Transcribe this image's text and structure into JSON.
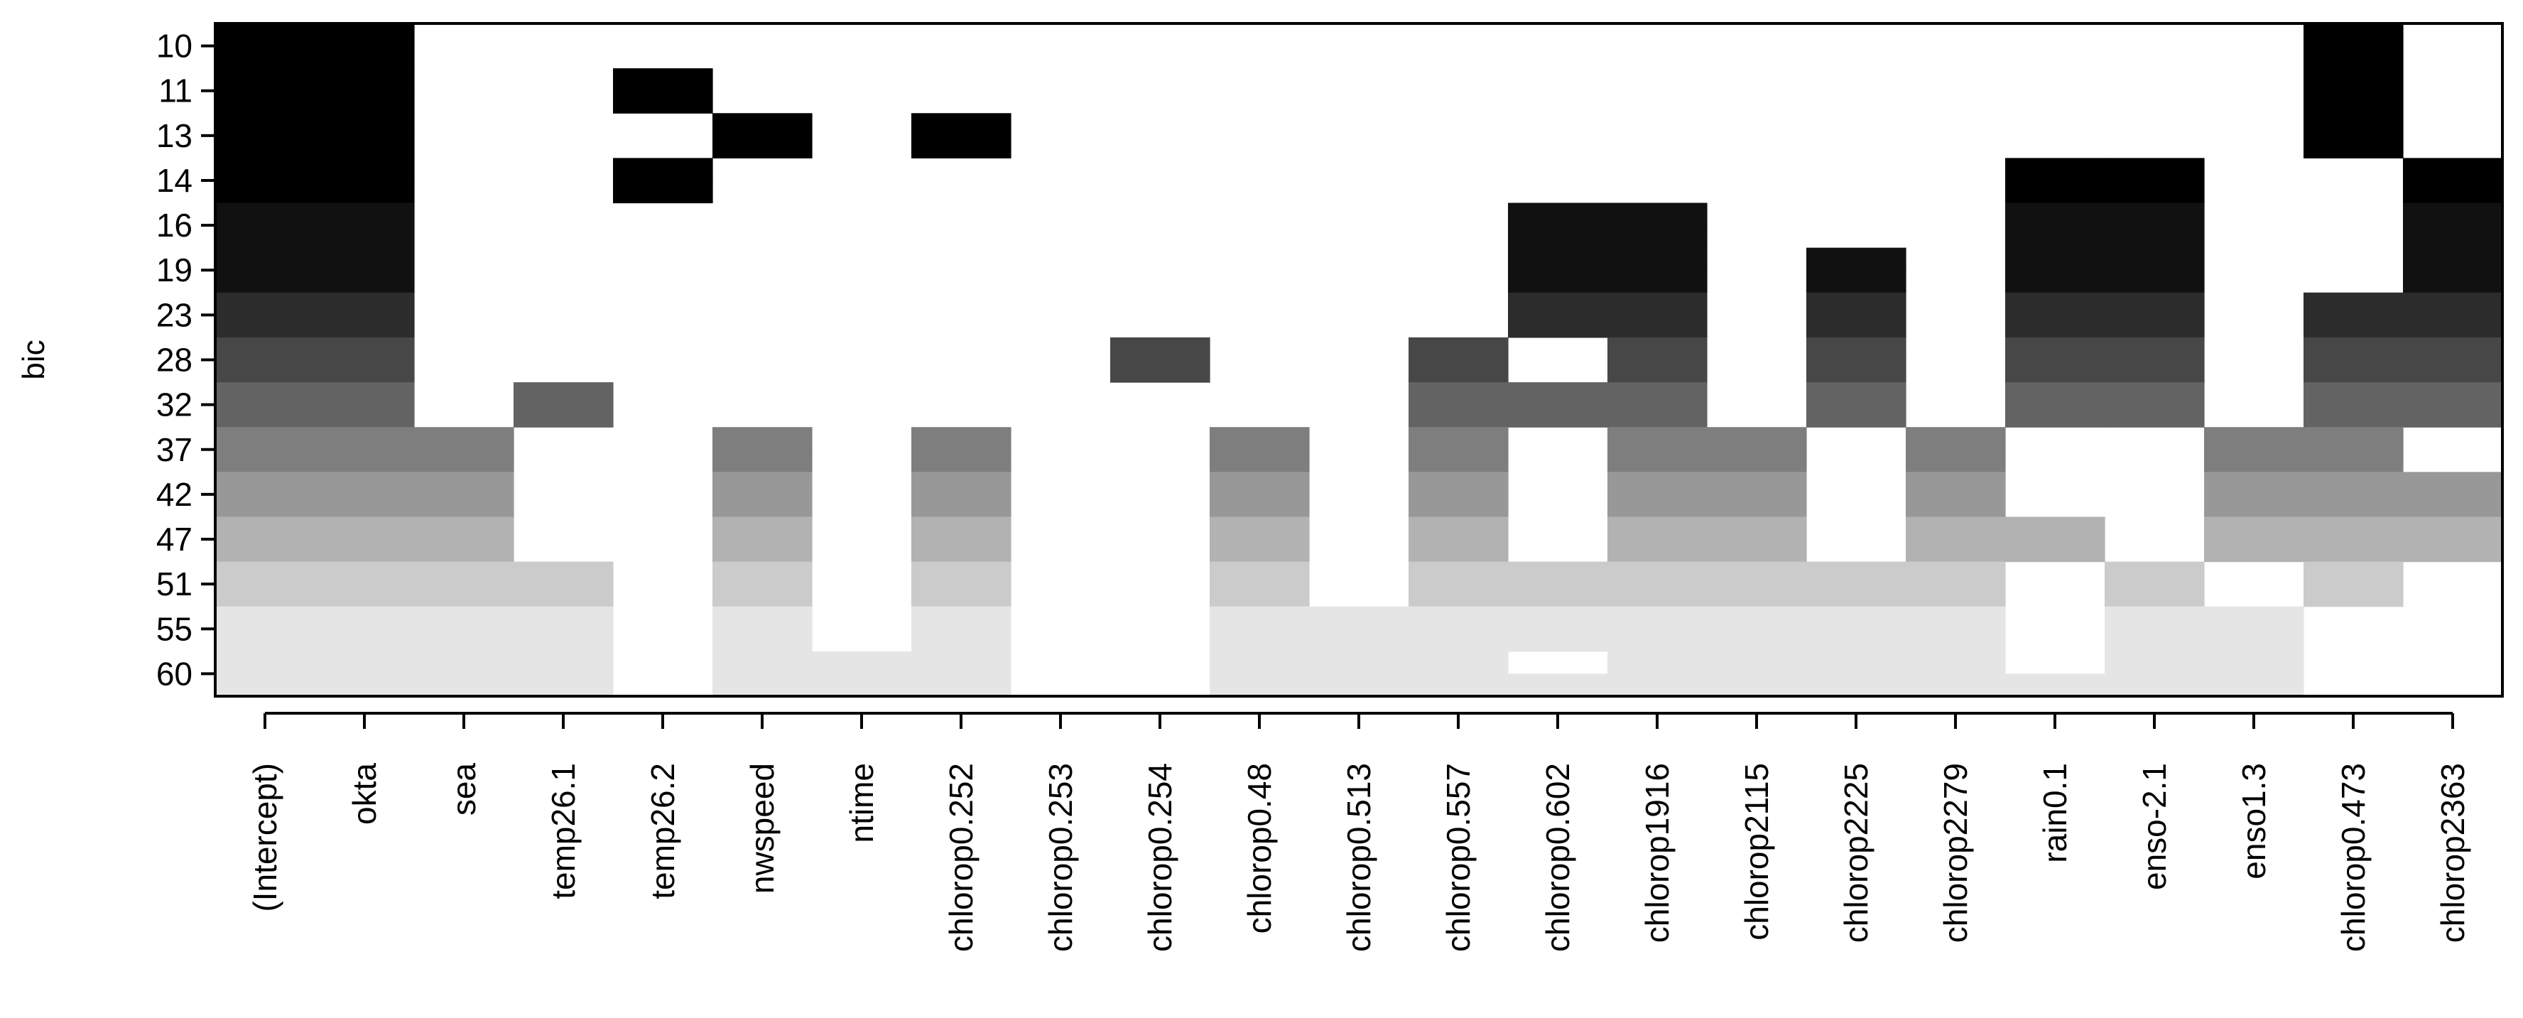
{
  "chart_data": {
    "type": "heatmap",
    "ylabel": "bic",
    "y_tick_labels": [
      "10",
      "11",
      "13",
      "14",
      "16",
      "19",
      "23",
      "28",
      "32",
      "37",
      "42",
      "47",
      "51",
      "55",
      "60"
    ],
    "x_tick_labels": [
      "(Intercept)",
      "okta",
      "sea",
      "temp26.1",
      "temp26.2",
      "nwspeed",
      "ntime",
      "chlorop0.252",
      "chlorop0.253",
      "chlorop0.254",
      "chlorop0.48",
      "chlorop0.513",
      "chlorop0.557",
      "chlorop0.602",
      "chlorop1916",
      "chlorop2115",
      "chlorop2225",
      "chlorop2279",
      "rain0.1",
      "enso-2.1",
      "enso1.3",
      "chlorop0.473",
      "chlorop2363"
    ],
    "row_colors": [
      "#000000",
      "#000000",
      "#000000",
      "#000000",
      "#111111",
      "#111111",
      "#2c2c2c",
      "#474747",
      "#636363",
      "#7e7e7e",
      "#989898",
      "#b2b2b2",
      "#cbcbcb",
      "#e5e5e5",
      "#e5e5e5"
    ],
    "subrow_fractions": [
      0.5,
      0.5,
      0.5,
      0.5,
      0.5,
      0.5,
      0.5,
      0.5,
      0.5,
      0.5,
      0.5,
      0.5,
      0.5,
      0.5,
      0.5
    ],
    "included": [
      [
        [
          1,
          1
        ],
        [
          1,
          1
        ],
        [
          0,
          0
        ],
        [
          0,
          0
        ],
        [
          0,
          0
        ],
        [
          0,
          0
        ],
        [
          0,
          0
        ],
        [
          0,
          0
        ],
        [
          0,
          0
        ],
        [
          0,
          0
        ],
        [
          0,
          0
        ],
        [
          0,
          0
        ],
        [
          0,
          0
        ],
        [
          0,
          0
        ],
        [
          0,
          0
        ],
        [
          0,
          0
        ],
        [
          0,
          0
        ],
        [
          0,
          0
        ],
        [
          0,
          0
        ],
        [
          0,
          0
        ],
        [
          0,
          0
        ],
        [
          1,
          1
        ],
        [
          0,
          0
        ]
      ],
      [
        [
          1,
          1
        ],
        [
          1,
          1
        ],
        [
          0,
          0
        ],
        [
          0,
          0
        ],
        [
          1,
          1
        ],
        [
          0,
          0
        ],
        [
          0,
          0
        ],
        [
          0,
          0
        ],
        [
          0,
          0
        ],
        [
          0,
          0
        ],
        [
          0,
          0
        ],
        [
          0,
          0
        ],
        [
          0,
          0
        ],
        [
          0,
          0
        ],
        [
          0,
          0
        ],
        [
          0,
          0
        ],
        [
          0,
          0
        ],
        [
          0,
          0
        ],
        [
          0,
          0
        ],
        [
          0,
          0
        ],
        [
          0,
          0
        ],
        [
          1,
          1
        ],
        [
          0,
          0
        ]
      ],
      [
        [
          1,
          1
        ],
        [
          1,
          1
        ],
        [
          0,
          0
        ],
        [
          0,
          0
        ],
        [
          0,
          0
        ],
        [
          1,
          1
        ],
        [
          0,
          0
        ],
        [
          1,
          1
        ],
        [
          0,
          0
        ],
        [
          0,
          0
        ],
        [
          0,
          0
        ],
        [
          0,
          0
        ],
        [
          0,
          0
        ],
        [
          0,
          0
        ],
        [
          0,
          0
        ],
        [
          0,
          0
        ],
        [
          0,
          0
        ],
        [
          0,
          0
        ],
        [
          0,
          0
        ],
        [
          0,
          0
        ],
        [
          0,
          0
        ],
        [
          1,
          1
        ],
        [
          0,
          0
        ]
      ],
      [
        [
          1,
          1
        ],
        [
          1,
          1
        ],
        [
          0,
          0
        ],
        [
          0,
          0
        ],
        [
          1,
          1
        ],
        [
          0,
          0
        ],
        [
          0,
          0
        ],
        [
          0,
          0
        ],
        [
          0,
          0
        ],
        [
          0,
          0
        ],
        [
          0,
          0
        ],
        [
          0,
          0
        ],
        [
          0,
          0
        ],
        [
          0,
          0
        ],
        [
          0,
          0
        ],
        [
          0,
          0
        ],
        [
          0,
          0
        ],
        [
          0,
          0
        ],
        [
          1,
          1
        ],
        [
          1,
          1
        ],
        [
          0,
          0
        ],
        [
          0,
          0
        ],
        [
          1,
          1
        ]
      ],
      [
        [
          1,
          1
        ],
        [
          1,
          1
        ],
        [
          0,
          0
        ],
        [
          0,
          0
        ],
        [
          0,
          0
        ],
        [
          0,
          0
        ],
        [
          0,
          0
        ],
        [
          0,
          0
        ],
        [
          0,
          0
        ],
        [
          0,
          0
        ],
        [
          0,
          0
        ],
        [
          0,
          0
        ],
        [
          0,
          0
        ],
        [
          1,
          1
        ],
        [
          1,
          1
        ],
        [
          0,
          0
        ],
        [
          0,
          0
        ],
        [
          0,
          0
        ],
        [
          1,
          1
        ],
        [
          1,
          1
        ],
        [
          0,
          0
        ],
        [
          0,
          0
        ],
        [
          1,
          1
        ]
      ],
      [
        [
          1,
          1
        ],
        [
          1,
          1
        ],
        [
          0,
          0
        ],
        [
          0,
          0
        ],
        [
          0,
          0
        ],
        [
          0,
          0
        ],
        [
          0,
          0
        ],
        [
          0,
          0
        ],
        [
          0,
          0
        ],
        [
          0,
          0
        ],
        [
          0,
          0
        ],
        [
          0,
          0
        ],
        [
          0,
          0
        ],
        [
          1,
          1
        ],
        [
          1,
          1
        ],
        [
          0,
          0
        ],
        [
          1,
          1
        ],
        [
          0,
          0
        ],
        [
          1,
          1
        ],
        [
          1,
          1
        ],
        [
          0,
          0
        ],
        [
          0,
          0
        ],
        [
          1,
          1
        ]
      ],
      [
        [
          1,
          1
        ],
        [
          1,
          1
        ],
        [
          0,
          0
        ],
        [
          0,
          0
        ],
        [
          0,
          0
        ],
        [
          0,
          0
        ],
        [
          0,
          0
        ],
        [
          0,
          0
        ],
        [
          0,
          0
        ],
        [
          0,
          0
        ],
        [
          0,
          0
        ],
        [
          0,
          0
        ],
        [
          0,
          0
        ],
        [
          1,
          1
        ],
        [
          1,
          1
        ],
        [
          0,
          0
        ],
        [
          1,
          1
        ],
        [
          0,
          0
        ],
        [
          1,
          1
        ],
        [
          1,
          1
        ],
        [
          0,
          0
        ],
        [
          1,
          1
        ],
        [
          1,
          1
        ]
      ],
      [
        [
          1,
          1
        ],
        [
          1,
          1
        ],
        [
          0,
          0
        ],
        [
          0,
          0
        ],
        [
          0,
          0
        ],
        [
          0,
          0
        ],
        [
          0,
          0
        ],
        [
          0,
          0
        ],
        [
          0,
          0
        ],
        [
          1,
          1
        ],
        [
          0,
          0
        ],
        [
          0,
          0
        ],
        [
          1,
          1
        ],
        [
          0,
          0
        ],
        [
          1,
          1
        ],
        [
          0,
          0
        ],
        [
          1,
          1
        ],
        [
          0,
          0
        ],
        [
          1,
          1
        ],
        [
          1,
          1
        ],
        [
          0,
          0
        ],
        [
          1,
          1
        ],
        [
          1,
          1
        ]
      ],
      [
        [
          1,
          1
        ],
        [
          1,
          1
        ],
        [
          0,
          0
        ],
        [
          1,
          1
        ],
        [
          0,
          0
        ],
        [
          0,
          0
        ],
        [
          0,
          0
        ],
        [
          0,
          0
        ],
        [
          0,
          0
        ],
        [
          0,
          0
        ],
        [
          0,
          0
        ],
        [
          0,
          0
        ],
        [
          1,
          1
        ],
        [
          1,
          1
        ],
        [
          1,
          1
        ],
        [
          0,
          0
        ],
        [
          1,
          1
        ],
        [
          0,
          0
        ],
        [
          1,
          1
        ],
        [
          1,
          1
        ],
        [
          0,
          0
        ],
        [
          1,
          1
        ],
        [
          1,
          1
        ]
      ],
      [
        [
          1,
          1
        ],
        [
          1,
          1
        ],
        [
          1,
          1
        ],
        [
          0,
          0
        ],
        [
          0,
          0
        ],
        [
          1,
          1
        ],
        [
          0,
          0
        ],
        [
          1,
          1
        ],
        [
          0,
          0
        ],
        [
          0,
          0
        ],
        [
          1,
          1
        ],
        [
          0,
          0
        ],
        [
          1,
          1
        ],
        [
          0,
          0
        ],
        [
          1,
          1
        ],
        [
          1,
          1
        ],
        [
          0,
          0
        ],
        [
          1,
          1
        ],
        [
          0,
          0
        ],
        [
          0,
          0
        ],
        [
          1,
          1
        ],
        [
          1,
          1
        ],
        [
          0,
          0
        ]
      ],
      [
        [
          1,
          1
        ],
        [
          1,
          1
        ],
        [
          1,
          1
        ],
        [
          0,
          0
        ],
        [
          0,
          0
        ],
        [
          1,
          1
        ],
        [
          0,
          0
        ],
        [
          1,
          1
        ],
        [
          0,
          0
        ],
        [
          0,
          0
        ],
        [
          1,
          1
        ],
        [
          0,
          0
        ],
        [
          1,
          1
        ],
        [
          0,
          0
        ],
        [
          1,
          1
        ],
        [
          1,
          1
        ],
        [
          0,
          0
        ],
        [
          1,
          1
        ],
        [
          0,
          0
        ],
        [
          0,
          0
        ],
        [
          1,
          1
        ],
        [
          1,
          1
        ],
        [
          1,
          1
        ]
      ],
      [
        [
          1,
          1
        ],
        [
          1,
          1
        ],
        [
          1,
          1
        ],
        [
          0,
          0
        ],
        [
          0,
          0
        ],
        [
          1,
          1
        ],
        [
          0,
          0
        ],
        [
          1,
          1
        ],
        [
          0,
          0
        ],
        [
          0,
          0
        ],
        [
          1,
          1
        ],
        [
          0,
          0
        ],
        [
          1,
          1
        ],
        [
          0,
          0
        ],
        [
          1,
          1
        ],
        [
          1,
          1
        ],
        [
          0,
          0
        ],
        [
          1,
          1
        ],
        [
          1,
          1
        ],
        [
          0,
          0
        ],
        [
          1,
          1
        ],
        [
          1,
          1
        ],
        [
          1,
          1
        ]
      ],
      [
        [
          1,
          1
        ],
        [
          1,
          1
        ],
        [
          1,
          1
        ],
        [
          1,
          1
        ],
        [
          0,
          0
        ],
        [
          1,
          1
        ],
        [
          0,
          0
        ],
        [
          1,
          1
        ],
        [
          0,
          0
        ],
        [
          0,
          0
        ],
        [
          1,
          1
        ],
        [
          0,
          0
        ],
        [
          1,
          1
        ],
        [
          1,
          1
        ],
        [
          1,
          1
        ],
        [
          1,
          1
        ],
        [
          1,
          1
        ],
        [
          1,
          1
        ],
        [
          0,
          0
        ],
        [
          1,
          1
        ],
        [
          0,
          0
        ],
        [
          1,
          1
        ],
        [
          0,
          0
        ]
      ],
      [
        [
          1,
          1
        ],
        [
          1,
          1
        ],
        [
          1,
          1
        ],
        [
          1,
          1
        ],
        [
          0,
          0
        ],
        [
          1,
          1
        ],
        [
          0,
          0
        ],
        [
          1,
          1
        ],
        [
          0,
          0
        ],
        [
          0,
          0
        ],
        [
          1,
          1
        ],
        [
          1,
          1
        ],
        [
          1,
          1
        ],
        [
          1,
          1
        ],
        [
          1,
          1
        ],
        [
          1,
          1
        ],
        [
          1,
          1
        ],
        [
          1,
          1
        ],
        [
          0,
          0
        ],
        [
          1,
          1
        ],
        [
          1,
          1
        ],
        [
          0,
          0
        ],
        [
          0,
          0
        ]
      ],
      [
        [
          1,
          1
        ],
        [
          1,
          1
        ],
        [
          1,
          1
        ],
        [
          1,
          1
        ],
        [
          0,
          0
        ],
        [
          1,
          1
        ],
        [
          1,
          1
        ],
        [
          1,
          1
        ],
        [
          0,
          0
        ],
        [
          0,
          0
        ],
        [
          1,
          1
        ],
        [
          1,
          1
        ],
        [
          1,
          1
        ],
        [
          0,
          1
        ],
        [
          1,
          1
        ],
        [
          1,
          1
        ],
        [
          1,
          1
        ],
        [
          1,
          1
        ],
        [
          0,
          1
        ],
        [
          1,
          1
        ],
        [
          1,
          1
        ],
        [
          0,
          0
        ],
        [
          0,
          0
        ]
      ]
    ],
    "included_encoding": "per cell [upper-half, lower-half]; 1 = shaded with row colour, 0 = white"
  }
}
